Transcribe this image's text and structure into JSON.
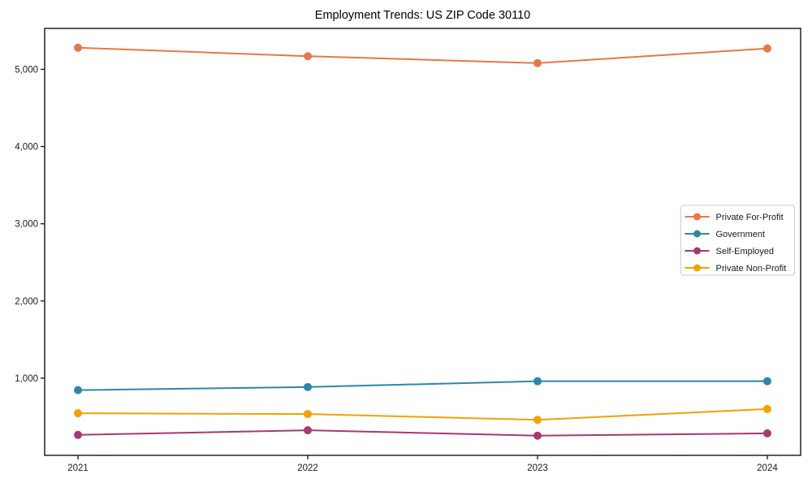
{
  "chart_data": {
    "type": "line",
    "title": "Employment Trends: US ZIP Code 30110",
    "xlabel": "",
    "ylabel": "",
    "x": [
      2021,
      2022,
      2023,
      2024
    ],
    "x_tick_labels": [
      "2021",
      "2022",
      "2023",
      "2024"
    ],
    "y_ticks": [
      1000,
      2000,
      3000,
      4000,
      5000
    ],
    "y_tick_labels": [
      "1,000",
      "2,000",
      "3,000",
      "4,000",
      "5,000"
    ],
    "xlim": [
      2020.855,
      2024.145
    ],
    "ylim": [
      0,
      5530
    ],
    "grid": false,
    "legend_position": "center-right",
    "series": [
      {
        "name": "Private For-Profit",
        "color": "#E8764B",
        "values": [
          5280,
          5170,
          5080,
          5270
        ]
      },
      {
        "name": "Government",
        "color": "#2E86A8",
        "values": [
          845,
          885,
          960,
          960
        ]
      },
      {
        "name": "Self-Employed",
        "color": "#A33B72",
        "values": [
          265,
          325,
          255,
          285
        ]
      },
      {
        "name": "Private Non-Profit",
        "color": "#F2A104",
        "values": [
          545,
          535,
          460,
          600
        ]
      }
    ]
  },
  "axes": {
    "frame_color": "#222222",
    "tick_color": "#222222",
    "tick_label_color": "#1a1a1a"
  }
}
